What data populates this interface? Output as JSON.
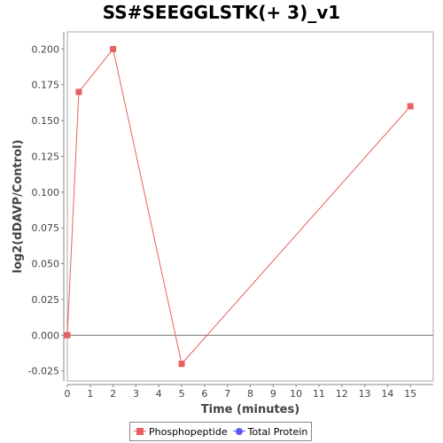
{
  "chart_data": {
    "type": "line",
    "title": "SS#SEEGGLSTK(+ 3)_v1",
    "xlabel": "Time (minutes)",
    "ylabel": "log2(dDAVP/Control)",
    "xlim": [
      0,
      16
    ],
    "ylim": [
      -0.032,
      0.212
    ],
    "xticks": [
      0,
      1,
      2,
      3,
      4,
      5,
      6,
      7,
      8,
      9,
      10,
      11,
      12,
      13,
      14,
      15
    ],
    "yticks": [
      -0.025,
      0.0,
      0.025,
      0.05,
      0.075,
      0.1,
      0.125,
      0.15,
      0.175,
      0.2
    ],
    "ytick_labels": [
      "-0.025",
      "0.000",
      "0.025",
      "0.050",
      "0.075",
      "0.100",
      "0.125",
      "0.150",
      "0.175",
      "0.200"
    ],
    "grid": false,
    "zero_line": true,
    "legend_position": "bottom",
    "series": [
      {
        "name": "Phosphopeptide",
        "color": "#e8605f",
        "marker": "square",
        "x": [
          0,
          0.5,
          2,
          5,
          15
        ],
        "y": [
          0.0,
          0.17,
          0.2,
          -0.02,
          0.16
        ]
      },
      {
        "name": "Total Protein",
        "color": "#5b5bef",
        "marker": "circle",
        "x": [],
        "y": []
      }
    ]
  }
}
